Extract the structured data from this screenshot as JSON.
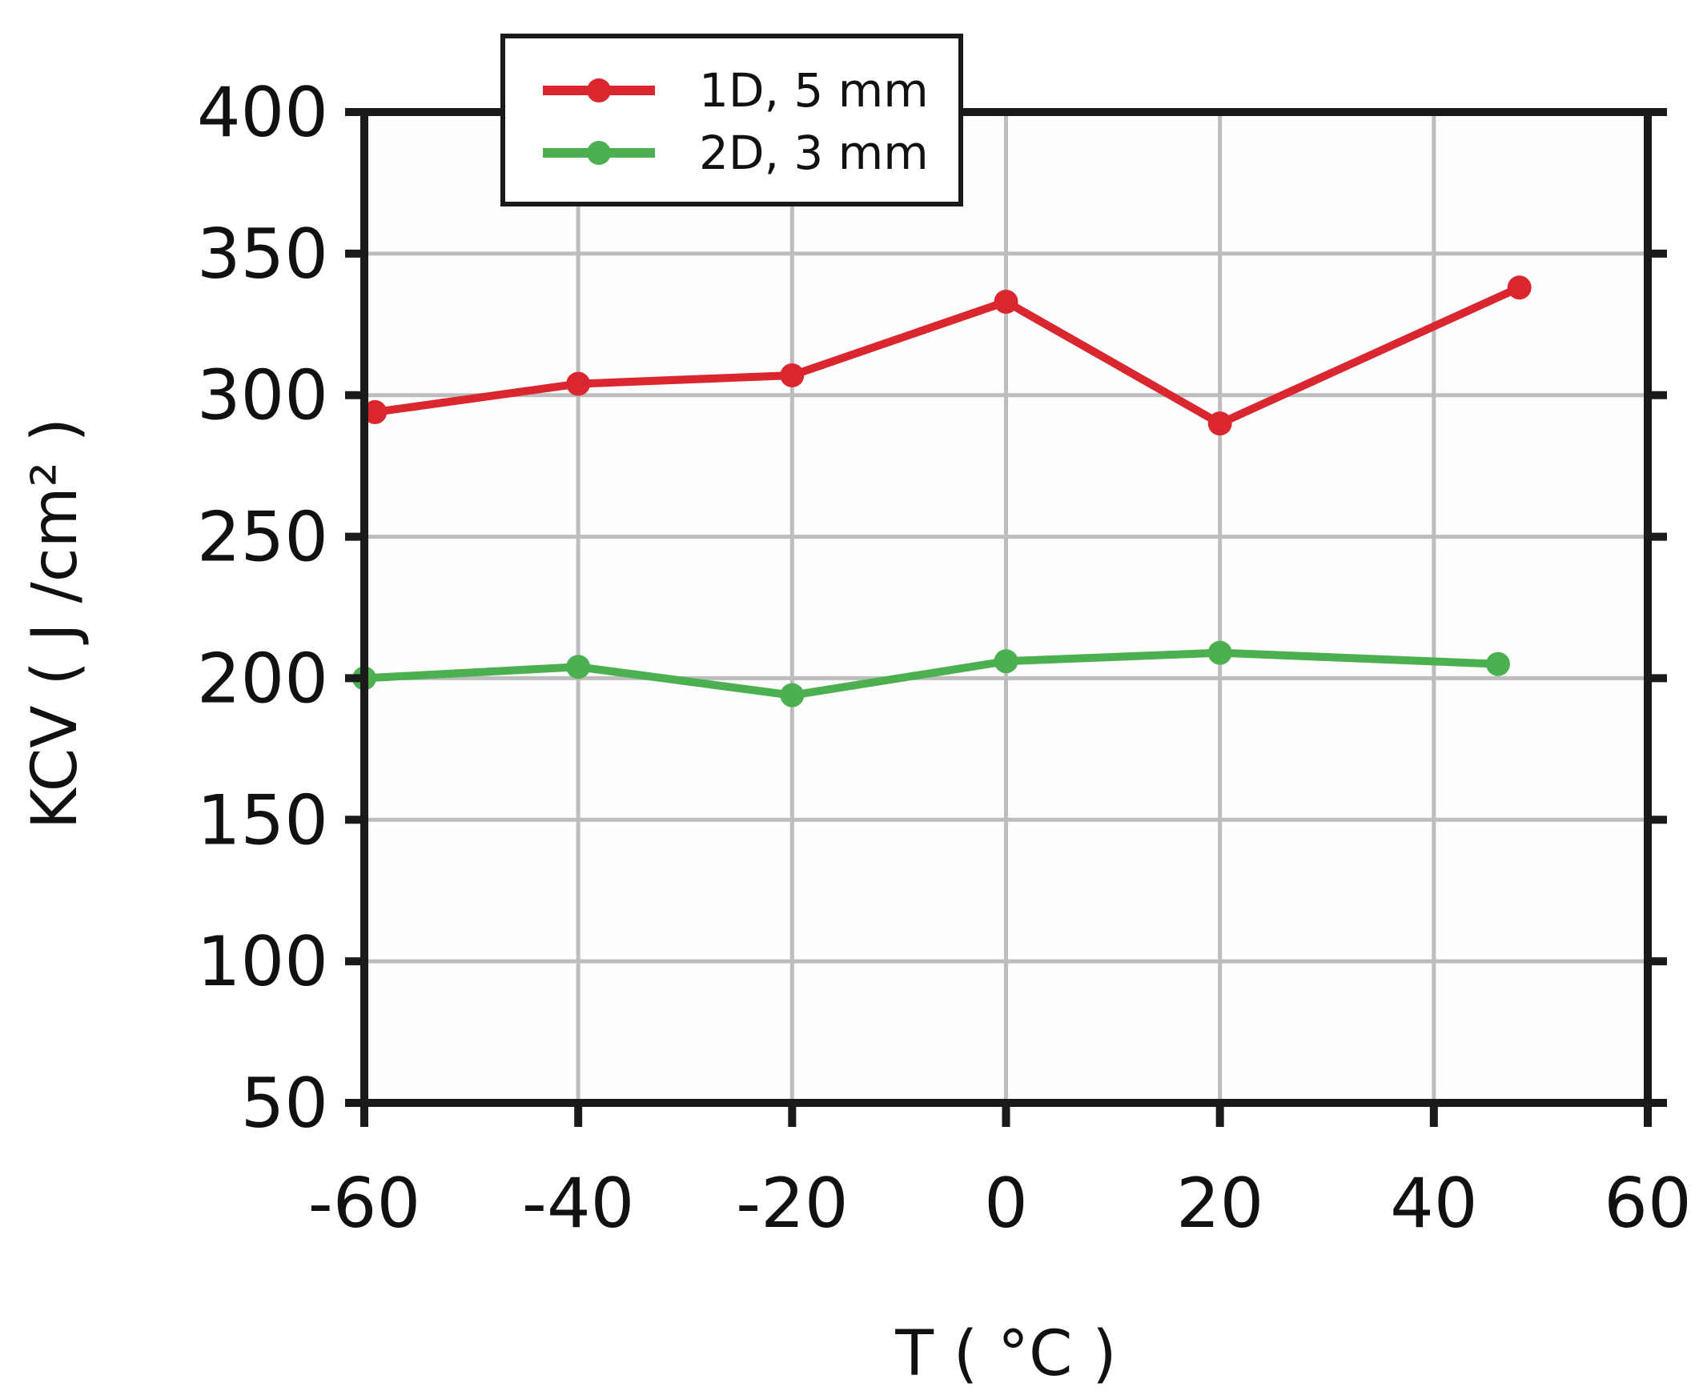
{
  "chart_data": {
    "type": "line",
    "xlabel": "T ( °C )",
    "ylabel": "KCV ( J /cm² )",
    "xlim": [
      -60,
      60
    ],
    "ylim": [
      50,
      400
    ],
    "xticks": [
      -60,
      -40,
      -20,
      0,
      20,
      40,
      60
    ],
    "yticks": [
      50,
      100,
      150,
      200,
      250,
      300,
      350,
      400
    ],
    "xtick_labels": [
      "-60",
      "-40",
      "-20",
      "0",
      "20",
      "40",
      "60"
    ],
    "ytick_labels": [
      "50",
      "100",
      "150",
      "200",
      "250",
      "300",
      "350",
      "400"
    ],
    "grid": true,
    "legend_position": "top-left",
    "series": [
      {
        "name": "1D, 5 mm",
        "color": "#d9262f",
        "x": [
          -59,
          -40,
          -20,
          0,
          20,
          48
        ],
        "y": [
          294,
          304,
          307,
          333,
          290,
          338
        ]
      },
      {
        "name": "2D, 3 mm",
        "color": "#4caf50",
        "x": [
          -60,
          -40,
          -20,
          0,
          20,
          46
        ],
        "y": [
          200,
          204,
          194,
          206,
          209,
          205
        ]
      }
    ]
  }
}
